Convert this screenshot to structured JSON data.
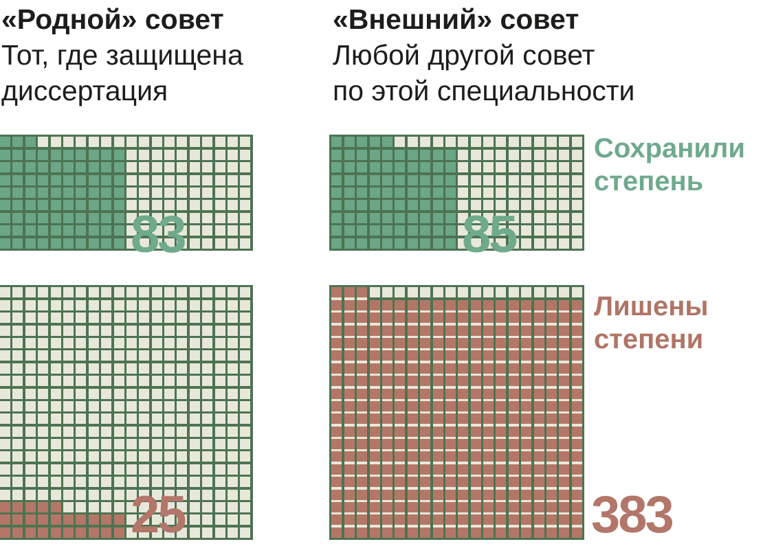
{
  "headers": [
    {
      "title": "«Родной» совет",
      "subtitle_lines": [
        "Тот, где защищена",
        "диссертация"
      ]
    },
    {
      "title": "«Внешний» совет",
      "subtitle_lines": [
        "Любой другой совет",
        "по этой специальности"
      ]
    }
  ],
  "legend": [
    {
      "id": "kept",
      "lines": [
        "Сохранили",
        "степень"
      ],
      "color": "#6faa8c"
    },
    {
      "id": "revoked",
      "lines": [
        "Лишены",
        "степени"
      ],
      "color": "#b07565"
    }
  ],
  "colors": {
    "background": "#ffffff",
    "grid_line": "#4d7352",
    "empty_cell": "#e8e8da",
    "kept_cell": "#6ba686",
    "revoked_cell": "#b47767",
    "kept_text": "#6faa8c",
    "revoked_text": "#b3766a",
    "heading_text": "#1d1d1b"
  },
  "chart_data": {
    "type": "waffle",
    "description": "Сохранили степень vs Лишены степени — «Родной» совет vs «Внешний» совет",
    "categories": [
      "«Родной» совет",
      "«Внешний» совет"
    ],
    "outcomes": [
      "Сохранили степень",
      "Лишены степени"
    ],
    "waffles": [
      {
        "id": "native-kept",
        "category": "«Родной» совет",
        "outcome": "Сохранили степень",
        "value": 83,
        "grid_cols": 20,
        "grid_rows": 9,
        "block_width": 10,
        "fill": "kept"
      },
      {
        "id": "external-kept",
        "category": "«Внешний» совет",
        "outcome": "Сохранили степень",
        "value": 85,
        "grid_cols": 20,
        "grid_rows": 9,
        "block_width": 10,
        "fill": "kept"
      },
      {
        "id": "native-revoked",
        "category": "«Родной» совет",
        "outcome": "Лишены степени",
        "value": 25,
        "grid_cols": 20,
        "grid_rows": 20,
        "block_width": 10,
        "fill": "revoked"
      },
      {
        "id": "external-revoked",
        "category": "«Внешний» совет",
        "outcome": "Лишены степени",
        "value": 383,
        "grid_cols": 20,
        "grid_rows": 20,
        "block_width": 20,
        "fill": "revoked",
        "cream_row_gaps": true
      }
    ]
  }
}
